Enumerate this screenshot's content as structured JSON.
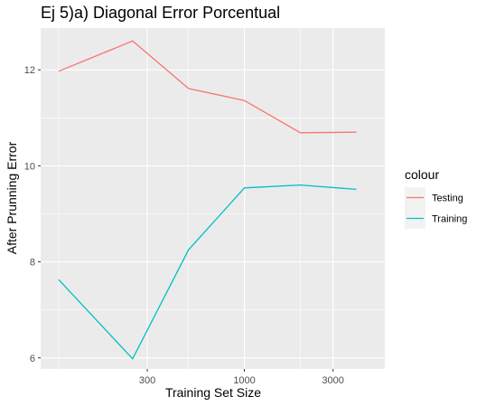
{
  "chart_data": {
    "type": "line",
    "title": "Ej 5)a) Diagonal Error Porcentual",
    "xlabel": "Training Set Size",
    "ylabel": "After Prunning Error",
    "x_scale": "log10",
    "x_ticks": [
      300,
      1000,
      3000
    ],
    "x_minor_ticks": [
      100,
      500,
      2000
    ],
    "xlim": [
      80,
      5700
    ],
    "y_ticks": [
      6,
      8,
      10,
      12
    ],
    "ylim": [
      5.77,
      12.87
    ],
    "grid": true,
    "legend": {
      "title": "colour",
      "position": "right"
    },
    "x": [
      100,
      250,
      500,
      1000,
      2000,
      4000
    ],
    "series": [
      {
        "name": "Testing",
        "color": "#F8766D",
        "values": [
          11.97,
          12.6,
          11.61,
          11.36,
          10.69,
          10.7
        ]
      },
      {
        "name": "Training",
        "color": "#00BFC4",
        "values": [
          7.63,
          5.98,
          8.25,
          9.54,
          9.6,
          9.51
        ]
      }
    ]
  }
}
